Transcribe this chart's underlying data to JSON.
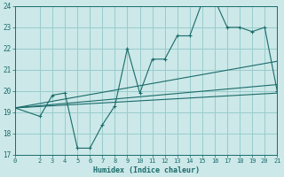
{
  "xlabel": "Humidex (Indice chaleur)",
  "bg_color": "#cce8e8",
  "grid_color": "#99cccc",
  "line_color": "#1a6b6b",
  "xlim": [
    0,
    21
  ],
  "ylim": [
    17,
    24
  ],
  "xticks": [
    0,
    2,
    3,
    4,
    5,
    6,
    7,
    8,
    9,
    10,
    11,
    12,
    13,
    14,
    15,
    16,
    17,
    18,
    19,
    20,
    21
  ],
  "yticks": [
    17,
    18,
    19,
    20,
    21,
    22,
    23,
    24
  ],
  "line1_x": [
    0,
    2,
    3,
    4,
    5,
    6,
    7,
    8,
    9,
    10,
    11,
    12,
    13,
    14,
    15,
    16,
    17,
    18,
    19,
    20,
    21
  ],
  "line1_y": [
    19.2,
    18.8,
    19.8,
    19.9,
    17.3,
    17.3,
    18.4,
    19.3,
    22.0,
    19.9,
    21.5,
    21.5,
    22.6,
    22.6,
    24.2,
    24.3,
    23.0,
    23.0,
    22.8,
    23.0,
    20.0
  ],
  "line2_x": [
    0,
    21
  ],
  "line2_y": [
    19.2,
    21.4
  ],
  "line3_x": [
    0,
    21
  ],
  "line3_y": [
    19.2,
    20.3
  ],
  "line4_x": [
    0,
    21
  ],
  "line4_y": [
    19.2,
    19.9
  ]
}
